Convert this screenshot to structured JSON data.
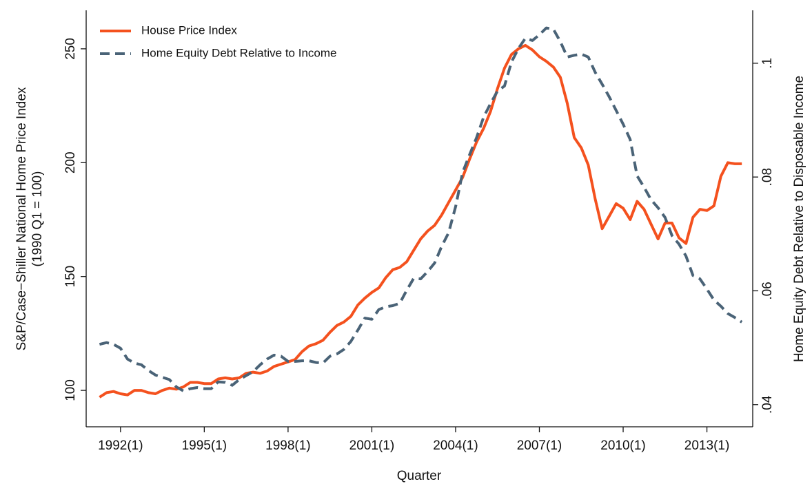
{
  "chart_data": {
    "type": "line",
    "xlabel": "Quarter",
    "ylabel": [
      "S&P/Case−Shiller National Home Price Index",
      "(1990 Q1 = 100)"
    ],
    "y2label": "Home Equity Debt Relative to Disposable Income",
    "xlim": [
      1990.77,
      2014.64
    ],
    "xticks": [
      {
        "value": 1992,
        "label": "1992(1)"
      },
      {
        "value": 1995,
        "label": "1995(1)"
      },
      {
        "value": 1998,
        "label": "1998(1)"
      },
      {
        "value": 2001,
        "label": "2001(1)"
      },
      {
        "value": 2004,
        "label": "2004(1)"
      },
      {
        "value": 2007,
        "label": "2007(1)"
      },
      {
        "value": 2010,
        "label": "2010(1)"
      },
      {
        "value": 2013,
        "label": "2013(1)"
      }
    ],
    "ylim": [
      84,
      266.9
    ],
    "yticks": [
      100,
      150,
      200,
      250
    ],
    "y2lim": [
      0.0361,
      0.1093
    ],
    "y2ticks": [
      {
        "value": 0.04,
        "label": ".04"
      },
      {
        "value": 0.06,
        "label": ".06"
      },
      {
        "value": 0.08,
        "label": ".08"
      },
      {
        "value": 0.1,
        "label": ".1"
      }
    ],
    "legend": "top-left",
    "x": [
      1991.25,
      1991.5,
      1991.75,
      1992,
      1992.25,
      1992.5,
      1992.75,
      1993,
      1993.25,
      1993.5,
      1993.75,
      1994,
      1994.25,
      1994.5,
      1994.75,
      1995,
      1995.25,
      1995.5,
      1995.75,
      1996,
      1996.25,
      1996.5,
      1996.75,
      1997,
      1997.25,
      1997.5,
      1997.75,
      1998,
      1998.25,
      1998.5,
      1998.75,
      1999,
      1999.25,
      1999.5,
      1999.75,
      2000,
      2000.25,
      2000.5,
      2000.75,
      2001,
      2001.25,
      2001.5,
      2001.75,
      2002,
      2002.25,
      2002.5,
      2002.75,
      2003,
      2003.25,
      2003.5,
      2003.75,
      2004,
      2004.25,
      2004.5,
      2004.75,
      2005,
      2005.25,
      2005.5,
      2005.75,
      2006,
      2006.25,
      2006.5,
      2006.75,
      2007,
      2007.25,
      2007.5,
      2007.75,
      2008,
      2008.25,
      2008.5,
      2008.75,
      2009,
      2009.25,
      2009.5,
      2009.75,
      2010,
      2010.25,
      2010.5,
      2010.75,
      2011,
      2011.25,
      2011.5,
      2011.75,
      2012,
      2012.25,
      2012.5,
      2012.75,
      2013,
      2013.25,
      2013.5,
      2013.75,
      2014,
      2014.25
    ],
    "series": [
      {
        "name": "House Price Index",
        "color": "#f4511e",
        "dash": false,
        "values": [
          97,
          99,
          99.5,
          98.5,
          98,
          100,
          100,
          99,
          98.5,
          100,
          101,
          100.5,
          101.5,
          103.5,
          103.5,
          103,
          103,
          105,
          105.5,
          105,
          105.5,
          107.5,
          108,
          107.5,
          108.5,
          110.5,
          111.5,
          112.5,
          113.5,
          117,
          119.5,
          120.5,
          122,
          125.5,
          128.5,
          130,
          132.5,
          137.5,
          140.5,
          143,
          145,
          149.5,
          153,
          154,
          156.5,
          161.5,
          166.5,
          170,
          172.5,
          177,
          182.5,
          188,
          193.5,
          201.5,
          209,
          215,
          222.5,
          232.5,
          241.5,
          247.5,
          250,
          251.5,
          249.5,
          246.5,
          244.5,
          242,
          237.5,
          226,
          211,
          206.5,
          199,
          184,
          171,
          176.5,
          182,
          180,
          175,
          183,
          179.5,
          173,
          166.5,
          173.5,
          173.5,
          167,
          164.5,
          176,
          179.5,
          179,
          181,
          194,
          200,
          199.5,
          199.5
        ]
      },
      {
        "name": "Home Equity Debt Relative to Income",
        "color": "#4a6377",
        "dash": true,
        "axis": "y2",
        "values": [
          0.0506,
          0.0509,
          0.0506,
          0.0499,
          0.048,
          0.0473,
          0.047,
          0.046,
          0.0452,
          0.0448,
          0.0444,
          0.0431,
          0.0424,
          0.0428,
          0.043,
          0.0428,
          0.0428,
          0.044,
          0.0439,
          0.0434,
          0.0444,
          0.0451,
          0.0458,
          0.047,
          0.048,
          0.0487,
          0.0485,
          0.0476,
          0.0476,
          0.0477,
          0.0477,
          0.0474,
          0.0473,
          0.0485,
          0.0489,
          0.0497,
          0.0511,
          0.0531,
          0.0552,
          0.055,
          0.0567,
          0.0572,
          0.0574,
          0.0578,
          0.0601,
          0.0622,
          0.0621,
          0.0634,
          0.0649,
          0.0678,
          0.0702,
          0.0748,
          0.0808,
          0.0839,
          0.0869,
          0.0905,
          0.0929,
          0.0951,
          0.096,
          0.1002,
          0.1026,
          0.1044,
          0.104,
          0.105,
          0.1062,
          0.106,
          0.1038,
          0.1011,
          0.1014,
          0.1016,
          0.1011,
          0.0984,
          0.0963,
          0.0941,
          0.0917,
          0.0893,
          0.0866,
          0.0802,
          0.0782,
          0.076,
          0.0746,
          0.0729,
          0.0697,
          0.0682,
          0.0661,
          0.0627,
          0.0621,
          0.0603,
          0.0584,
          0.0573,
          0.056,
          0.0553,
          0.0545
        ]
      }
    ]
  }
}
